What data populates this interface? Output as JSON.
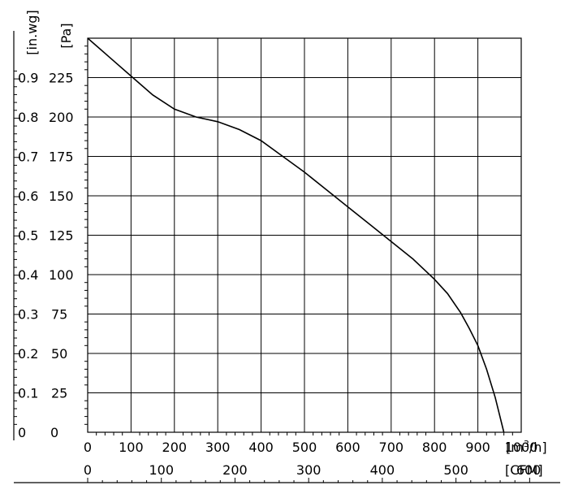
{
  "chart_data": {
    "type": "line",
    "title": "",
    "x_axis_primary": {
      "unit_prefix": "[m",
      "unit_sup": "3",
      "unit_suffix": "/h]",
      "range": [
        0,
        1000
      ],
      "ticks": [
        "0",
        "100",
        "200",
        "300",
        "400",
        "500",
        "600",
        "700",
        "800",
        "900",
        "1000"
      ]
    },
    "x_axis_secondary": {
      "unit": "[CFM]",
      "range": [
        0,
        600
      ],
      "ticks": [
        "0",
        "100",
        "200",
        "300",
        "400",
        "500",
        "600"
      ]
    },
    "y_axis_primary": {
      "unit": "[Pa]",
      "range": [
        0,
        250
      ],
      "ticks": [
        "0",
        "25",
        "50",
        "75",
        "100",
        "125",
        "150",
        "175",
        "200",
        "225"
      ]
    },
    "y_axis_secondary": {
      "unit": "[in.wg]",
      "ticks": [
        "0",
        "0.1",
        "0.2",
        "0.3",
        "0.4",
        "0.5",
        "0.6",
        "0.7",
        "0.8",
        "0.9"
      ]
    },
    "grid": true,
    "series": [
      {
        "x": [
          0,
          50,
          100,
          150,
          200,
          250,
          300,
          350,
          400,
          450,
          500,
          550,
          600,
          650,
          700,
          750,
          800,
          830,
          860,
          880,
          900,
          920,
          940,
          960
        ],
        "y": [
          250,
          238,
          226,
          214,
          205,
          200,
          197,
          192,
          185,
          175,
          165,
          154,
          143,
          132,
          121,
          110,
          97,
          88,
          76,
          66,
          55,
          40,
          22,
          0
        ]
      }
    ]
  }
}
